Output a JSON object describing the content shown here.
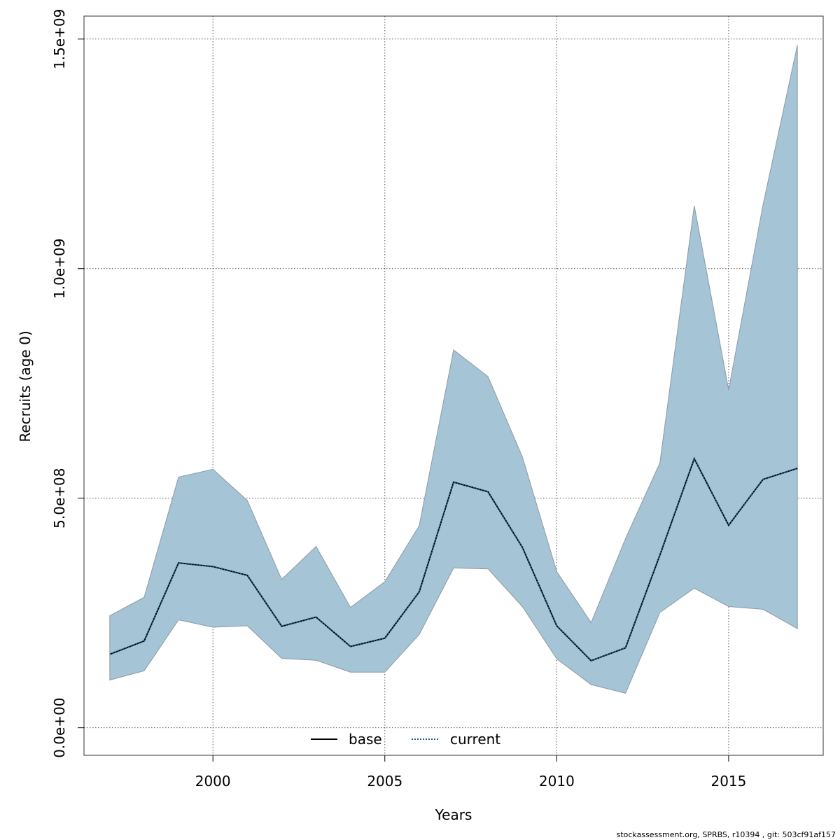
{
  "chart_data": {
    "type": "area",
    "xlabel": "Years",
    "ylabel": "Recruits (age 0)",
    "xlim": [
      1996.25,
      2017.75
    ],
    "ylim": [
      -60000000,
      1550000000
    ],
    "x_ticks": [
      2000,
      2005,
      2010,
      2015
    ],
    "x_tick_labels": [
      "2000",
      "2005",
      "2010",
      "2015"
    ],
    "y_ticks": [
      0,
      500000000,
      1000000000,
      1500000000
    ],
    "y_tick_labels": [
      "0.0e+00",
      "5.0e+08",
      "1.0e+09",
      "1.5e+09"
    ],
    "grid": true,
    "legend": {
      "position": "bottom",
      "entries": [
        {
          "label": "base",
          "style": "solid",
          "color": "#000000"
        },
        {
          "label": "current",
          "style": "dotted",
          "color": "#1f5f8b"
        }
      ]
    },
    "x": [
      1997,
      1998,
      1999,
      2000,
      2001,
      2002,
      2003,
      2004,
      2005,
      2006,
      2007,
      2008,
      2009,
      2010,
      2011,
      2012,
      2013,
      2014,
      2015,
      2016,
      2017
    ],
    "series": [
      {
        "name": "base",
        "values": [
          160000000,
          189000000,
          359000000,
          351000000,
          332000000,
          221000000,
          241000000,
          177000000,
          195000000,
          296000000,
          535000000,
          514000000,
          393000000,
          222000000,
          146000000,
          174000000,
          376000000,
          586000000,
          441000000,
          541000000,
          565000000
        ],
        "lower": [
          104000000,
          124000000,
          235000000,
          219000000,
          222000000,
          151000000,
          147000000,
          121000000,
          121000000,
          203000000,
          348000000,
          346000000,
          264000000,
          150000000,
          94000000,
          75000000,
          251000000,
          304000000,
          264000000,
          258000000,
          216000000
        ],
        "upper": [
          244000000,
          284000000,
          546000000,
          563000000,
          495000000,
          323000000,
          395000000,
          262000000,
          318000000,
          440000000,
          823000000,
          765000000,
          590000000,
          340000000,
          229000000,
          412000000,
          577000000,
          1137000000,
          736000000,
          1139000000,
          1487000000
        ]
      },
      {
        "name": "current",
        "values": [
          160000000,
          189000000,
          359000000,
          351000000,
          332000000,
          221000000,
          241000000,
          177000000,
          195000000,
          296000000,
          535000000,
          514000000,
          393000000,
          222000000,
          146000000,
          174000000,
          376000000,
          586000000,
          441000000,
          541000000,
          565000000
        ]
      }
    ],
    "colors": {
      "ribbon": "#a5c4d6",
      "ribbon_edge": "#8a9aa6",
      "base_line": "#000000",
      "current_line": "#1f5f8b"
    }
  },
  "footer": "stockassessment.org, SPRBS, r10394 , git: 503cf91af157"
}
